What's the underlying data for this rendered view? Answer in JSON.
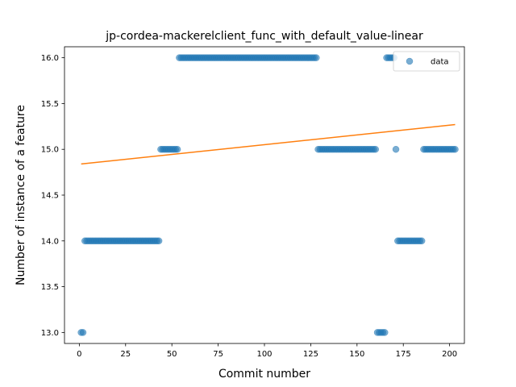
{
  "chart_data": {
    "type": "scatter",
    "title": "jp-cordea-mackerelclient_func_with_default_value-linear",
    "xlabel": "Commit number",
    "ylabel": "Number of instance of a feature",
    "xlim": [
      -8,
      208
    ],
    "ylim": [
      12.88,
      16.12
    ],
    "xticks": [
      0,
      25,
      50,
      75,
      100,
      125,
      150,
      175,
      200
    ],
    "yticks": [
      13.0,
      13.5,
      14.0,
      14.5,
      15.0,
      15.5,
      16.0
    ],
    "ytick_labels": [
      "13.0",
      "13.5",
      "14.0",
      "14.5",
      "15.0",
      "15.5",
      "16.0"
    ],
    "legend": {
      "position": "top-right",
      "entries": [
        "data"
      ]
    },
    "colors": {
      "data": "#1f77b4",
      "fit": "#ff7f0e"
    },
    "series": [
      {
        "name": "data",
        "segments": [
          {
            "x_start": 1,
            "x_end": 2,
            "y": 13.0
          },
          {
            "x_start": 3,
            "x_end": 43,
            "y": 14.0
          },
          {
            "x_start": 44,
            "x_end": 53,
            "y": 15.0
          },
          {
            "x_start": 54,
            "x_end": 128,
            "y": 16.0
          },
          {
            "x_start": 129,
            "x_end": 160,
            "y": 15.0
          },
          {
            "x_start": 161,
            "x_end": 165,
            "y": 13.0
          },
          {
            "x_start": 166,
            "x_end": 170,
            "y": 16.0
          },
          {
            "x_start": 171,
            "x_end": 171,
            "y": 15.0
          },
          {
            "x_start": 172,
            "x_end": 185,
            "y": 14.0
          },
          {
            "x_start": 186,
            "x_end": 203,
            "y": 15.0
          }
        ]
      },
      {
        "line": [
          [
            1,
            14.84
          ],
          [
            203,
            15.27
          ]
        ]
      }
    ]
  }
}
